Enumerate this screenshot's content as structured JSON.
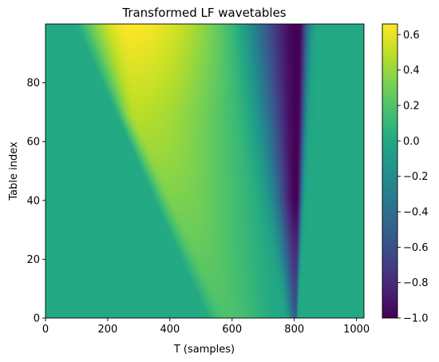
{
  "chart_data": {
    "type": "heatmap",
    "title": "Transformed LF wavetables",
    "xlabel": "T (samples)",
    "ylabel": "Table index",
    "xlim": [
      0,
      1024
    ],
    "ylim": [
      0,
      100
    ],
    "xticks": [
      0,
      200,
      400,
      600,
      800,
      1000
    ],
    "yticks": [
      0,
      20,
      40,
      60,
      80
    ],
    "colormap": "viridis",
    "colorbar": {
      "vmin": -1.0,
      "vmax": 0.66,
      "ticks": [
        -1.0,
        -0.8,
        -0.6,
        -0.4,
        -0.2,
        0.0,
        0.2,
        0.4,
        0.6
      ],
      "tick_labels": [
        "−1.0",
        "−0.8",
        "−0.6",
        "−0.4",
        "−0.2",
        "0.0",
        "0.2",
        "0.4",
        "0.6"
      ]
    },
    "grid": false,
    "field_description": "Each row is one wavetable: near-zero baseline left of a positive hump, a sharp negative dip near T≈800, and a return to zero. Hump start moves right as table index decreases; hump peak ~0.66 at top rows, ~0.2 at bottom rows.",
    "row_samples": [
      {
        "table_index": 0,
        "T": [
          0,
          400,
          550,
          700,
          780,
          805,
          812,
          1023
        ],
        "value": [
          0.0,
          0.0,
          0.15,
          0.22,
          0.1,
          -0.6,
          0.0,
          0.0
        ]
      },
      {
        "table_index": 50,
        "T": [
          0,
          100,
          250,
          450,
          650,
          760,
          800,
          830,
          1023
        ],
        "value": [
          0.0,
          0.0,
          0.3,
          0.4,
          0.25,
          -0.4,
          -0.95,
          -0.2,
          0.0
        ]
      },
      {
        "table_index": 99,
        "T": [
          0,
          100,
          200,
          300,
          400,
          500,
          600,
          700,
          780,
          810,
          850,
          1023
        ],
        "value": [
          0.0,
          0.2,
          0.55,
          0.66,
          0.55,
          0.35,
          0.1,
          -0.3,
          -0.9,
          -1.0,
          -0.3,
          0.0
        ]
      }
    ]
  }
}
